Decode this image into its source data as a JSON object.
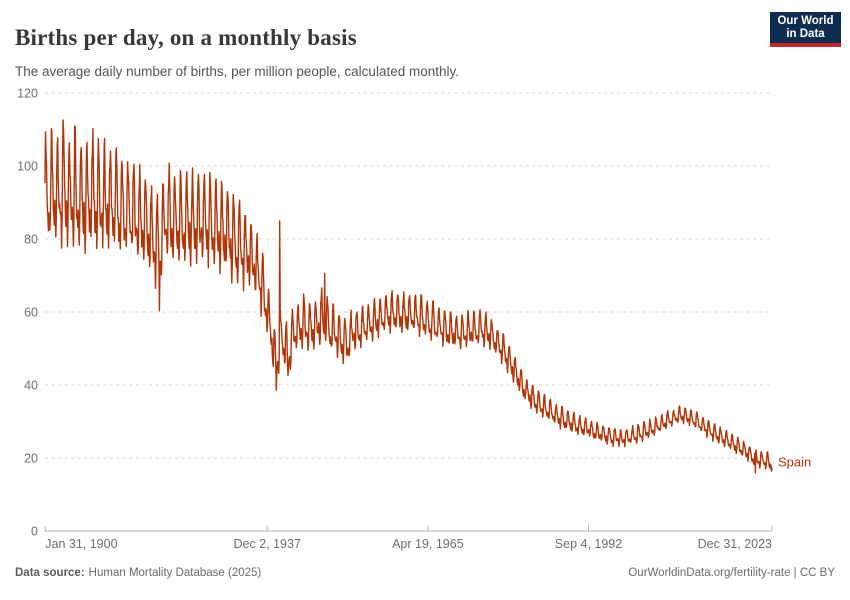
{
  "header": {
    "title": "Births per day, on a monthly basis",
    "subtitle": "The average daily number of births, per million people, calculated monthly."
  },
  "logo": {
    "line1": "Our World",
    "line2": "in Data"
  },
  "footer": {
    "source_label": "Data source:",
    "source_value": "Human Mortality Database (2025)",
    "attribution": "OurWorldinData.org/fertility-rate | CC BY"
  },
  "colors": {
    "series": "#B13507",
    "grid": "#d4d4d4",
    "axis": "#b3b3b3",
    "tick_text": "#6e6e6e",
    "logo_bg": "#0d2c50",
    "logo_bar": "#c0282d",
    "title_text": "#383838"
  },
  "chart_data": {
    "type": "line",
    "title": "Births per day, on a monthly basis",
    "subtitle": "The average daily number of births, per million people, calculated monthly.",
    "grid": "horizontal-dashed",
    "legend_position": "label-at-line-end",
    "x_axis": {
      "range_years": [
        1900.04,
        2023.96
      ],
      "ticks": [
        {
          "label": "Jan 31, 1900",
          "year": 1900.085,
          "anchor": "start"
        },
        {
          "label": "Dec 2, 1937",
          "year": 1937.92,
          "anchor": "middle"
        },
        {
          "label": "Apr 19, 1965",
          "year": 1965.3,
          "anchor": "middle"
        },
        {
          "label": "Sep 4, 1992",
          "year": 1992.68,
          "anchor": "middle"
        },
        {
          "label": "Dec 31, 2023",
          "year": 2023.997,
          "anchor": "end"
        }
      ]
    },
    "y_axis": {
      "ticks": [
        0,
        20,
        40,
        60,
        80,
        100,
        120
      ],
      "range": [
        0,
        120
      ]
    },
    "series": [
      {
        "name": "Spain",
        "color": "#B13507",
        "cadence": "monthly",
        "trend_points": [
          [
            1900,
            92.5
          ],
          [
            1903,
            93.5
          ],
          [
            1906,
            93
          ],
          [
            1909,
            91.5
          ],
          [
            1912,
            90
          ],
          [
            1915,
            87.5
          ],
          [
            1917,
            85
          ],
          [
            1918.7,
            80
          ],
          [
            1919.6,
            78
          ],
          [
            1920.5,
            86
          ],
          [
            1923,
            85.5
          ],
          [
            1926,
            85
          ],
          [
            1929,
            84
          ],
          [
            1931,
            82
          ],
          [
            1933,
            79
          ],
          [
            1935,
            76
          ],
          [
            1936.5,
            71
          ],
          [
            1937.5,
            64
          ],
          [
            1938.5,
            56
          ],
          [
            1939.4,
            45
          ],
          [
            1940.3,
            54
          ],
          [
            1941.5,
            48
          ],
          [
            1942.5,
            55
          ],
          [
            1944,
            57
          ],
          [
            1946,
            56
          ],
          [
            1947.5,
            59
          ],
          [
            1949,
            55
          ],
          [
            1951,
            52
          ],
          [
            1953,
            55
          ],
          [
            1955,
            56.5
          ],
          [
            1957,
            58.5
          ],
          [
            1959,
            60
          ],
          [
            1961,
            59.5
          ],
          [
            1963,
            59.5
          ],
          [
            1965,
            58.5
          ],
          [
            1967,
            56.5
          ],
          [
            1969,
            55
          ],
          [
            1971,
            54.5
          ],
          [
            1973,
            55.5
          ],
          [
            1974.5,
            56
          ],
          [
            1976,
            54
          ],
          [
            1978,
            50
          ],
          [
            1980,
            44.5
          ],
          [
            1982,
            38.5
          ],
          [
            1984,
            35.5
          ],
          [
            1986,
            33
          ],
          [
            1988,
            31
          ],
          [
            1990,
            29.5
          ],
          [
            1992,
            28.3
          ],
          [
            1994,
            27.2
          ],
          [
            1996,
            26.2
          ],
          [
            1998,
            25.4
          ],
          [
            2000,
            26
          ],
          [
            2002,
            27.2
          ],
          [
            2004,
            28.6
          ],
          [
            2006,
            30.2
          ],
          [
            2008,
            31.7
          ],
          [
            2009.3,
            31.8
          ],
          [
            2010.5,
            30.8
          ],
          [
            2012,
            29.2
          ],
          [
            2014,
            27
          ],
          [
            2016,
            25.2
          ],
          [
            2018,
            23.4
          ],
          [
            2019.5,
            22
          ],
          [
            2020.5,
            20.6
          ],
          [
            2021.5,
            19.8
          ],
          [
            2022.5,
            19.4
          ],
          [
            2024,
            18.7
          ]
        ],
        "seasonal_amplitude_points": [
          [
            1900,
            14.5
          ],
          [
            1906,
            14.5
          ],
          [
            1910,
            13.5
          ],
          [
            1914,
            12.5
          ],
          [
            1918,
            11
          ],
          [
            1921,
            12
          ],
          [
            1926,
            12
          ],
          [
            1930,
            11.5
          ],
          [
            1934,
            10
          ],
          [
            1937,
            8
          ],
          [
            1940,
            6
          ],
          [
            1943,
            7
          ],
          [
            1948,
            6.5
          ],
          [
            1952,
            5.5
          ],
          [
            1956,
            5
          ],
          [
            1962,
            5
          ],
          [
            1968,
            4.6
          ],
          [
            1975,
            4.4
          ],
          [
            1980,
            3.6
          ],
          [
            1985,
            3
          ],
          [
            1990,
            2.6
          ],
          [
            1995,
            2.3
          ],
          [
            2000,
            2.2
          ],
          [
            2010,
            2.2
          ],
          [
            2024,
            2.1
          ]
        ],
        "seasonal_pattern_by_month": [
          0.45,
          0.95,
          1.0,
          0.5,
          0.05,
          -0.3,
          -0.5,
          -0.55,
          -0.3,
          -0.5,
          -0.95,
          -0.55
        ],
        "notable_events": [
          {
            "year": 1903.15,
            "value": 113.3,
            "width": 0.05
          },
          {
            "year": 1905.15,
            "value": 113.0,
            "width": 0.05
          },
          {
            "year": 1908.2,
            "value": 110.5,
            "width": 0.05
          },
          {
            "year": 1919.55,
            "value": 60.0,
            "width": 0.05
          },
          {
            "year": 1939.46,
            "value": 38.6,
            "width": 0.06
          },
          {
            "year": 1940.05,
            "value": 86.0,
            "width": 0.045
          },
          {
            "year": 1941.42,
            "value": 39.5,
            "width": 0.05
          },
          {
            "year": 1947.7,
            "value": 71.0,
            "width": 0.05
          },
          {
            "year": 1951.5,
            "value": 47.0,
            "width": 0.06
          },
          {
            "year": 2021.12,
            "value": 15.8,
            "width": 0.045
          }
        ],
        "end_value": 18.7
      }
    ]
  }
}
